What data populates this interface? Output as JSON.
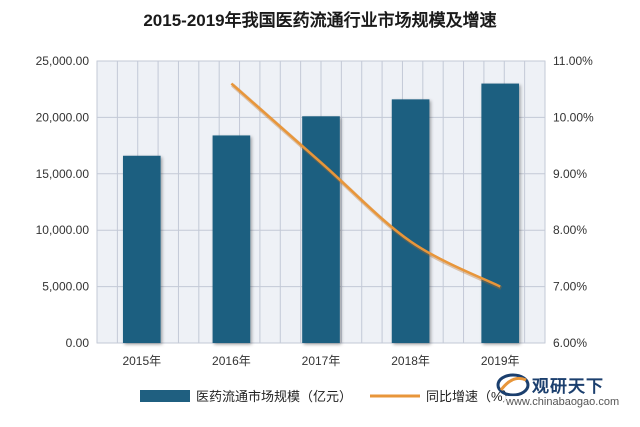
{
  "chart_data": {
    "type": "bar+line",
    "title": "2015-2019年我国医药流通行业市场规模及增速",
    "categories": [
      "2015年",
      "2016年",
      "2017年",
      "2018年",
      "2019年"
    ],
    "series": [
      {
        "name": "医药流通市场规模（亿元）",
        "type": "bar",
        "axis": "left",
        "color": "#1f5f80",
        "values": [
          16600,
          18400,
          20100,
          21600,
          23000
        ]
      },
      {
        "name": "同比增速（%）",
        "type": "line",
        "axis": "right",
        "color": "#e8963a",
        "values": [
          null,
          10.6,
          9.2,
          7.8,
          7.0
        ]
      }
    ],
    "y_left": {
      "min": 0,
      "max": 25000,
      "ticks": [
        "0.00",
        "5,000.00",
        "10,000.00",
        "15,000.00",
        "20,000.00",
        "25,000.00"
      ]
    },
    "y_right": {
      "min": 6,
      "max": 11,
      "ticks": [
        "6.00%",
        "7.00%",
        "8.00%",
        "9.00%",
        "10.00%",
        "11.00%"
      ]
    },
    "grid": true,
    "legend_position": "bottom"
  },
  "watermark": {
    "brand": "观研天下",
    "url": "www.chinabaogao.com"
  }
}
